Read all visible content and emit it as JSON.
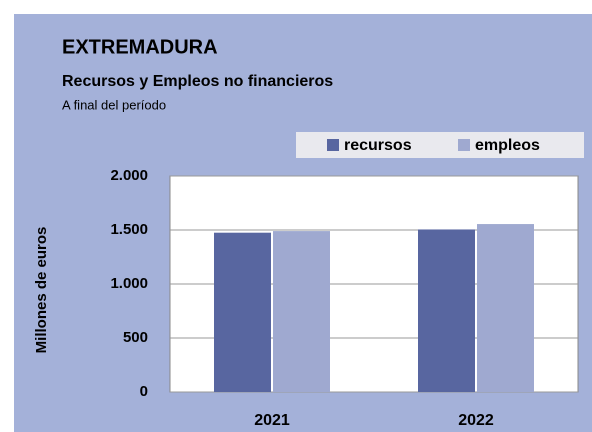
{
  "chart_data": {
    "type": "bar",
    "title": "EXTREMADURA",
    "subtitle": "Recursos y Empleos no financieros",
    "note": "A final del período",
    "y_label": "Millones de euros",
    "categories": [
      "2021",
      "2022"
    ],
    "series": [
      {
        "name": "recursos",
        "color": "#5866a0",
        "values": [
          1475,
          1505
        ]
      },
      {
        "name": "empleos",
        "color": "#9fa9d0",
        "values": [
          1490,
          1555
        ]
      }
    ],
    "ylim": [
      0,
      2000
    ],
    "yticks": [
      0,
      500,
      {
        "value": 1000,
        "label": "1.000"
      },
      {
        "value": 1500,
        "label": "1.500"
      },
      {
        "value": 2000,
        "label": "2.000"
      }
    ],
    "grid": true
  }
}
